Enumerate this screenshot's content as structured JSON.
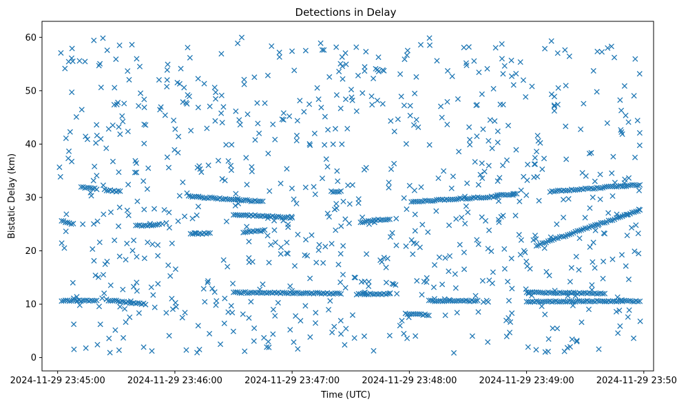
{
  "chart_data": {
    "type": "scatter",
    "title": "Detections in Delay",
    "xlabel": "Time (UTC)",
    "ylabel": "Bistatic Delay (km)",
    "marker": "x",
    "color": "#1f77b4",
    "grid": false,
    "legend": false,
    "x_axis": {
      "kind": "time",
      "range": [
        "2024-11-29 23:44:52",
        "2024-11-29 23:50:05"
      ],
      "ticks": [
        "2024-11-29 23:45:00",
        "2024-11-29 23:46:00",
        "2024-11-29 23:47:00",
        "2024-11-29 23:48:00",
        "2024-11-29 23:49:00",
        "2024-11-29 23:50:00"
      ]
    },
    "y_axis": {
      "range": [
        -2.5,
        63
      ],
      "ticks": [
        0,
        10,
        20,
        30,
        40,
        50,
        60
      ]
    },
    "series": [
      {
        "description_only": false,
        "tracks": [
          {
            "start": "2024-11-29 23:45:12",
            "end": "2024-11-29 23:45:20",
            "y_start": 31.9,
            "y_end": 31.6
          },
          {
            "start": "2024-11-29 23:45:24",
            "end": "2024-11-29 23:45:32",
            "y_start": 31.4,
            "y_end": 31.1
          },
          {
            "start": "2024-11-29 23:46:07",
            "end": "2024-11-29 23:46:45",
            "y_start": 30.2,
            "y_end": 29.2
          },
          {
            "start": "2024-11-29 23:45:02",
            "end": "2024-11-29 23:45:08",
            "y_start": 25.6,
            "y_end": 25.0
          },
          {
            "start": "2024-11-29 23:45:40",
            "end": "2024-11-29 23:45:52",
            "y_start": 24.7,
            "y_end": 24.9
          },
          {
            "start": "2024-11-29 23:46:08",
            "end": "2024-11-29 23:46:18",
            "y_start": 23.2,
            "y_end": 23.3
          },
          {
            "start": "2024-11-29 23:46:35",
            "end": "2024-11-29 23:46:46",
            "y_start": 23.5,
            "y_end": 23.8
          },
          {
            "start": "2024-11-29 23:46:30",
            "end": "2024-11-29 23:47:00",
            "y_start": 26.8,
            "y_end": 26.2
          },
          {
            "start": "2024-11-29 23:47:20",
            "end": "2024-11-29 23:47:25",
            "y_start": 31.1,
            "y_end": 31.1
          },
          {
            "start": "2024-11-29 23:47:35",
            "end": "2024-11-29 23:47:50",
            "y_start": 25.4,
            "y_end": 26.0
          },
          {
            "start": "2024-11-29 23:48:01",
            "end": "2024-11-29 23:48:45",
            "y_start": 29.2,
            "y_end": 30.2
          },
          {
            "start": "2024-11-29 23:48:45",
            "end": "2024-11-29 23:48:55",
            "y_start": 30.4,
            "y_end": 30.6
          },
          {
            "start": "2024-11-29 23:49:12",
            "end": "2024-11-29 23:49:58",
            "y_start": 31.1,
            "y_end": 32.4
          },
          {
            "start": "2024-11-29 23:49:05",
            "end": "2024-11-29 23:49:58",
            "y_start": 21.0,
            "y_end": 27.6
          },
          {
            "start": "2024-11-29 23:45:02",
            "end": "2024-11-29 23:45:20",
            "y_start": 10.7,
            "y_end": 10.7
          },
          {
            "start": "2024-11-29 23:45:25",
            "end": "2024-11-29 23:45:45",
            "y_start": 10.8,
            "y_end": 10.0
          },
          {
            "start": "2024-11-29 23:46:30",
            "end": "2024-11-29 23:47:25",
            "y_start": 12.2,
            "y_end": 12.0
          },
          {
            "start": "2024-11-29 23:47:33",
            "end": "2024-11-29 23:47:50",
            "y_start": 11.9,
            "y_end": 11.9
          },
          {
            "start": "2024-11-29 23:47:58",
            "end": "2024-11-29 23:48:10",
            "y_start": 8.2,
            "y_end": 8.0
          },
          {
            "start": "2024-11-29 23:48:10",
            "end": "2024-11-29 23:48:35",
            "y_start": 10.6,
            "y_end": 10.6
          },
          {
            "start": "2024-11-29 23:49:00",
            "end": "2024-11-29 23:49:40",
            "y_start": 12.2,
            "y_end": 12.0
          },
          {
            "start": "2024-11-29 23:49:00",
            "end": "2024-11-29 23:49:58",
            "y_start": 10.5,
            "y_end": 10.6
          }
        ],
        "clutter": {
          "count": 820,
          "x_range": [
            "2024-11-29 23:45:00",
            "2024-11-29 23:50:00"
          ],
          "y_range": [
            0.8,
            60
          ]
        }
      }
    ]
  }
}
